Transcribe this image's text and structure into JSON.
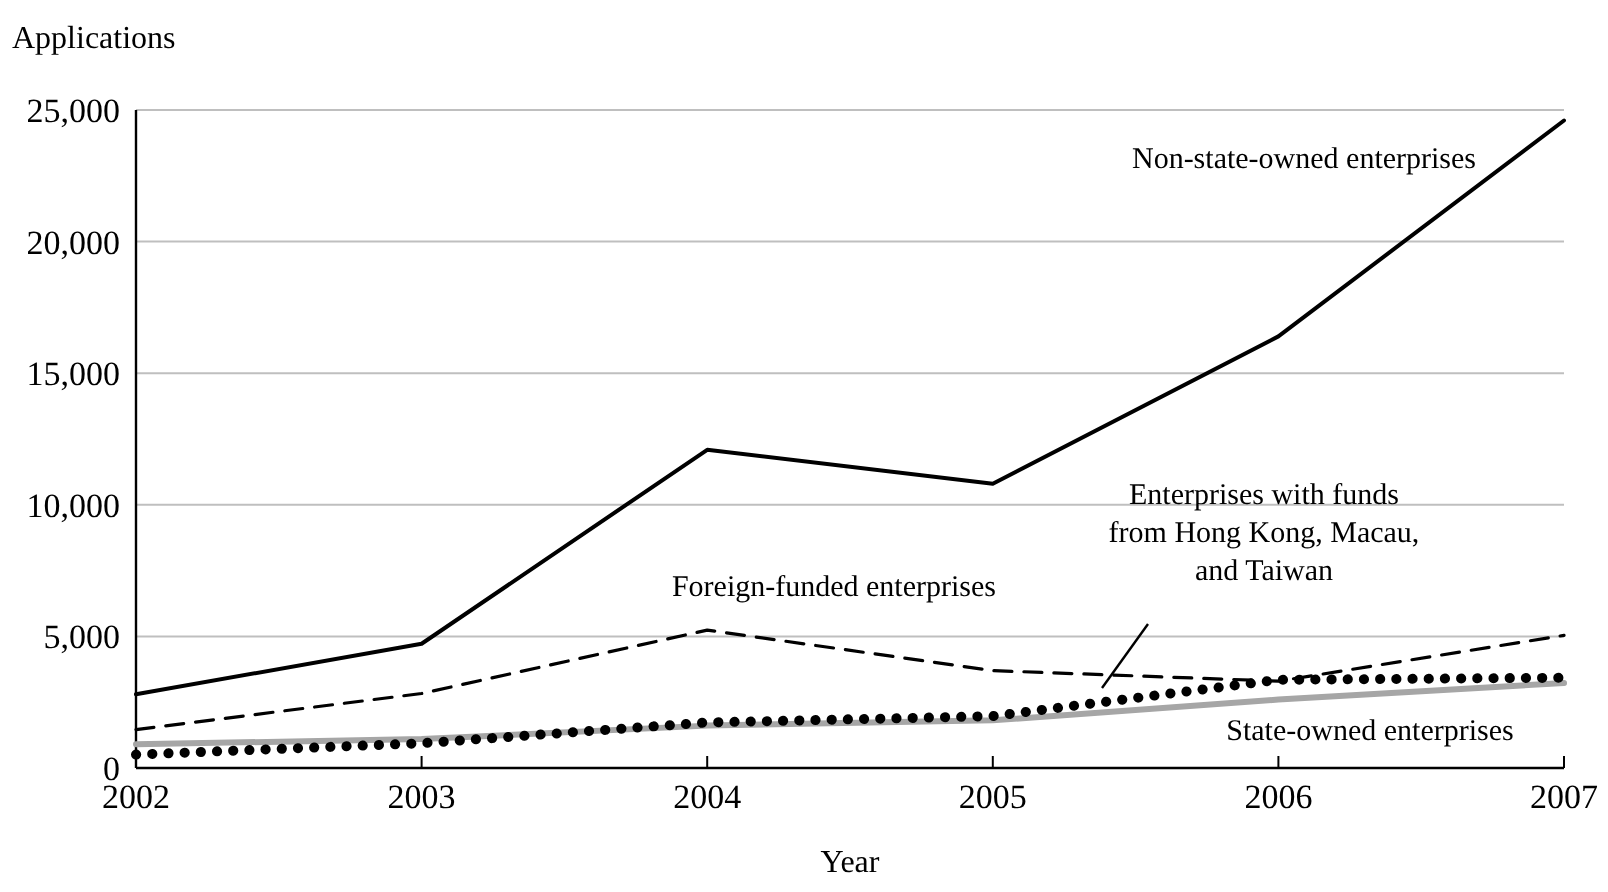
{
  "chart_data": {
    "type": "line",
    "ylabel": "Applications",
    "xlabel": "Year",
    "x": [
      2002,
      2003,
      2004,
      2005,
      2006,
      2007
    ],
    "xlim": [
      2002,
      2007
    ],
    "xticks": [
      2002,
      2003,
      2004,
      2005,
      2006,
      2007
    ],
    "ylim": [
      0,
      25000
    ],
    "yticks": [
      {
        "value": 0,
        "label": "0"
      },
      {
        "value": 5000,
        "label": "5,000"
      },
      {
        "value": 10000,
        "label": "10,000"
      },
      {
        "value": 15000,
        "label": "15,000"
      },
      {
        "value": 20000,
        "label": "20,000"
      },
      {
        "value": 25000,
        "label": "25,000"
      }
    ],
    "grid": "y",
    "marker": "none",
    "series": [
      {
        "name": "Non-state-owned enterprises",
        "color": "#000000",
        "line_style": "solid",
        "values": [
          2800,
          4720,
          12090,
          10800,
          16400,
          24600
        ]
      },
      {
        "name": "Foreign-funded enterprises",
        "color": "#000000",
        "line_style": "dashed",
        "values": [
          1460,
          2830,
          5240,
          3700,
          3300,
          5040
        ]
      },
      {
        "name": "Enterprises with funds from Hong Kong, Macau, and Taiwan",
        "color": "#000000",
        "line_style": "dotted",
        "values": [
          510,
          940,
          1730,
          1970,
          3350,
          3430
        ]
      },
      {
        "name": "State-owned enterprises",
        "color": "#a6a6a6",
        "line_style": "solid",
        "values": [
          900,
          1100,
          1610,
          1810,
          2600,
          3230
        ]
      }
    ]
  }
}
